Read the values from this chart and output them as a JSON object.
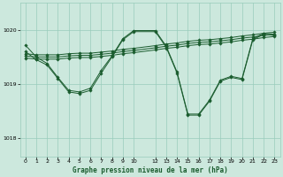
{
  "background_color": "#cce8dd",
  "grid_color": "#99ccbb",
  "line_color": "#1a5c2e",
  "marker_color": "#1a5c2e",
  "yticks": [
    1018,
    1019,
    1020
  ],
  "ylim": [
    1017.65,
    1020.5
  ],
  "xlim": [
    -0.5,
    23.5
  ],
  "xticks": [
    0,
    1,
    2,
    3,
    4,
    5,
    6,
    7,
    8,
    9,
    10,
    12,
    13,
    14,
    15,
    16,
    17,
    18,
    19,
    20,
    21,
    22,
    23
  ],
  "xlabel": "Graphe pression niveau de la mer (hPa)",
  "series": [
    {
      "x": [
        0,
        1,
        2,
        3,
        4,
        5,
        6,
        7,
        8,
        9,
        10,
        12,
        13,
        14,
        15,
        16,
        17,
        18,
        19,
        20,
        21,
        22,
        23
      ],
      "y": [
        1019.52,
        1019.5,
        1019.5,
        1019.5,
        1019.52,
        1019.53,
        1019.53,
        1019.55,
        1019.57,
        1019.6,
        1019.62,
        1019.67,
        1019.7,
        1019.72,
        1019.75,
        1019.77,
        1019.78,
        1019.8,
        1019.82,
        1019.85,
        1019.87,
        1019.9,
        1019.92
      ]
    },
    {
      "x": [
        0,
        1,
        2,
        3,
        4,
        5,
        6,
        7,
        8,
        9,
        10,
        12,
        13,
        14,
        15,
        16,
        17,
        18,
        19,
        20,
        21,
        22,
        23
      ],
      "y": [
        1019.48,
        1019.46,
        1019.46,
        1019.46,
        1019.48,
        1019.49,
        1019.49,
        1019.51,
        1019.53,
        1019.56,
        1019.58,
        1019.63,
        1019.66,
        1019.68,
        1019.71,
        1019.73,
        1019.74,
        1019.76,
        1019.78,
        1019.81,
        1019.83,
        1019.86,
        1019.88
      ]
    },
    {
      "x": [
        0,
        1,
        2,
        3,
        4,
        5,
        6,
        7,
        8,
        9,
        10,
        12,
        13,
        14,
        15,
        16,
        17,
        18,
        19,
        20,
        21,
        22,
        23
      ],
      "y": [
        1019.56,
        1019.54,
        1019.54,
        1019.54,
        1019.56,
        1019.57,
        1019.57,
        1019.59,
        1019.61,
        1019.64,
        1019.66,
        1019.71,
        1019.74,
        1019.76,
        1019.79,
        1019.81,
        1019.82,
        1019.84,
        1019.86,
        1019.89,
        1019.91,
        1019.94,
        1019.96
      ]
    },
    {
      "x": [
        0,
        1,
        2,
        3,
        4,
        5,
        6,
        7,
        8,
        9,
        10,
        12,
        13,
        14,
        15,
        16,
        17,
        18,
        19,
        20,
        21,
        22,
        23
      ],
      "y": [
        1019.6,
        1019.45,
        1019.35,
        1019.1,
        1018.85,
        1018.82,
        1018.88,
        1019.2,
        1019.5,
        1019.82,
        1019.97,
        1019.97,
        1019.68,
        1019.2,
        1018.42,
        1018.42,
        1018.68,
        1019.05,
        1019.12,
        1019.08,
        1019.82,
        1019.92,
        1019.9
      ]
    },
    {
      "x": [
        0,
        1,
        2,
        3,
        4,
        5,
        6,
        7,
        8,
        9,
        10,
        12,
        13,
        14,
        15,
        16,
        17,
        18,
        19,
        20,
        21,
        22,
        23
      ],
      "y": [
        1019.72,
        1019.5,
        1019.38,
        1019.12,
        1018.88,
        1018.85,
        1018.92,
        1019.25,
        1019.52,
        1019.84,
        1019.99,
        1019.99,
        1019.7,
        1019.22,
        1018.44,
        1018.44,
        1018.7,
        1019.07,
        1019.14,
        1019.1,
        1019.84,
        1019.94,
        1019.92
      ]
    }
  ]
}
